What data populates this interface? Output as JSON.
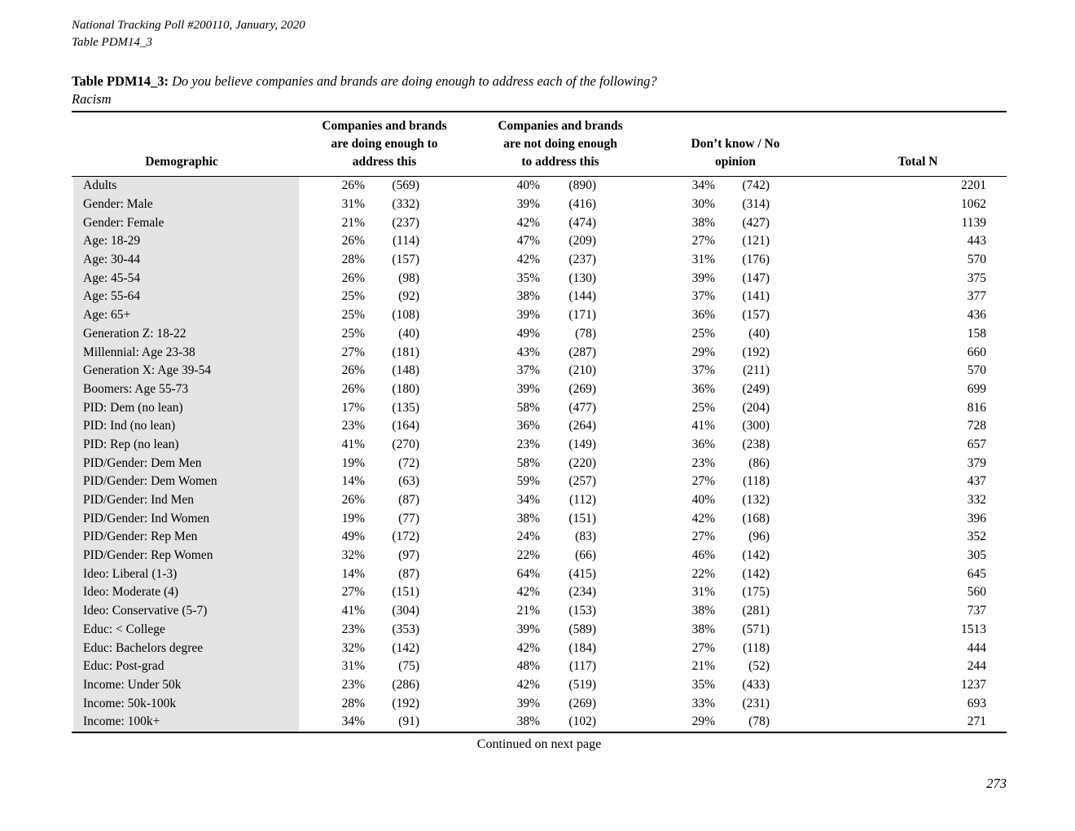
{
  "page": {
    "header_line1": "National Tracking Poll #200110, January, 2020",
    "header_line2": "Table PDM14_3",
    "title_label": "Table PDM14_3:",
    "title_question": "Do you believe companies and brands are doing enough to address each of the following?",
    "title_topic": "Racism",
    "footer_continued": "Continued on next page",
    "page_number": "273"
  },
  "table": {
    "headers": {
      "demographic": "Demographic",
      "doing_enough": [
        "Companies and brands",
        "are doing enough to",
        "address this"
      ],
      "not_doing_enough": [
        "Companies and brands",
        "are not doing enough",
        "to address this"
      ],
      "dont_know": [
        "Don’t know / No",
        "opinion"
      ],
      "total_n": "Total N"
    },
    "rows": [
      {
        "label": "Adults",
        "c1_pct": "26%",
        "c1_n": "(569)",
        "c2_pct": "40%",
        "c2_n": "(890)",
        "c3_pct": "34%",
        "c3_n": "(742)",
        "total": "2201"
      },
      {
        "label": "Gender: Male",
        "c1_pct": "31%",
        "c1_n": "(332)",
        "c2_pct": "39%",
        "c2_n": "(416)",
        "c3_pct": "30%",
        "c3_n": "(314)",
        "total": "1062"
      },
      {
        "label": "Gender: Female",
        "c1_pct": "21%",
        "c1_n": "(237)",
        "c2_pct": "42%",
        "c2_n": "(474)",
        "c3_pct": "38%",
        "c3_n": "(427)",
        "total": "1139"
      },
      {
        "label": "Age: 18-29",
        "c1_pct": "26%",
        "c1_n": "(114)",
        "c2_pct": "47%",
        "c2_n": "(209)",
        "c3_pct": "27%",
        "c3_n": "(121)",
        "total": "443"
      },
      {
        "label": "Age: 30-44",
        "c1_pct": "28%",
        "c1_n": "(157)",
        "c2_pct": "42%",
        "c2_n": "(237)",
        "c3_pct": "31%",
        "c3_n": "(176)",
        "total": "570"
      },
      {
        "label": "Age: 45-54",
        "c1_pct": "26%",
        "c1_n": "(98)",
        "c2_pct": "35%",
        "c2_n": "(130)",
        "c3_pct": "39%",
        "c3_n": "(147)",
        "total": "375"
      },
      {
        "label": "Age: 55-64",
        "c1_pct": "25%",
        "c1_n": "(92)",
        "c2_pct": "38%",
        "c2_n": "(144)",
        "c3_pct": "37%",
        "c3_n": "(141)",
        "total": "377"
      },
      {
        "label": "Age: 65+",
        "c1_pct": "25%",
        "c1_n": "(108)",
        "c2_pct": "39%",
        "c2_n": "(171)",
        "c3_pct": "36%",
        "c3_n": "(157)",
        "total": "436"
      },
      {
        "label": "Generation Z: 18-22",
        "c1_pct": "25%",
        "c1_n": "(40)",
        "c2_pct": "49%",
        "c2_n": "(78)",
        "c3_pct": "25%",
        "c3_n": "(40)",
        "total": "158"
      },
      {
        "label": "Millennial: Age 23-38",
        "c1_pct": "27%",
        "c1_n": "(181)",
        "c2_pct": "43%",
        "c2_n": "(287)",
        "c3_pct": "29%",
        "c3_n": "(192)",
        "total": "660"
      },
      {
        "label": "Generation X: Age 39-54",
        "c1_pct": "26%",
        "c1_n": "(148)",
        "c2_pct": "37%",
        "c2_n": "(210)",
        "c3_pct": "37%",
        "c3_n": "(211)",
        "total": "570"
      },
      {
        "label": "Boomers: Age 55-73",
        "c1_pct": "26%",
        "c1_n": "(180)",
        "c2_pct": "39%",
        "c2_n": "(269)",
        "c3_pct": "36%",
        "c3_n": "(249)",
        "total": "699"
      },
      {
        "label": "PID: Dem (no lean)",
        "c1_pct": "17%",
        "c1_n": "(135)",
        "c2_pct": "58%",
        "c2_n": "(477)",
        "c3_pct": "25%",
        "c3_n": "(204)",
        "total": "816"
      },
      {
        "label": "PID: Ind (no lean)",
        "c1_pct": "23%",
        "c1_n": "(164)",
        "c2_pct": "36%",
        "c2_n": "(264)",
        "c3_pct": "41%",
        "c3_n": "(300)",
        "total": "728"
      },
      {
        "label": "PID: Rep (no lean)",
        "c1_pct": "41%",
        "c1_n": "(270)",
        "c2_pct": "23%",
        "c2_n": "(149)",
        "c3_pct": "36%",
        "c3_n": "(238)",
        "total": "657"
      },
      {
        "label": "PID/Gender: Dem Men",
        "c1_pct": "19%",
        "c1_n": "(72)",
        "c2_pct": "58%",
        "c2_n": "(220)",
        "c3_pct": "23%",
        "c3_n": "(86)",
        "total": "379"
      },
      {
        "label": "PID/Gender: Dem Women",
        "c1_pct": "14%",
        "c1_n": "(63)",
        "c2_pct": "59%",
        "c2_n": "(257)",
        "c3_pct": "27%",
        "c3_n": "(118)",
        "total": "437"
      },
      {
        "label": "PID/Gender: Ind Men",
        "c1_pct": "26%",
        "c1_n": "(87)",
        "c2_pct": "34%",
        "c2_n": "(112)",
        "c3_pct": "40%",
        "c3_n": "(132)",
        "total": "332"
      },
      {
        "label": "PID/Gender: Ind Women",
        "c1_pct": "19%",
        "c1_n": "(77)",
        "c2_pct": "38%",
        "c2_n": "(151)",
        "c3_pct": "42%",
        "c3_n": "(168)",
        "total": "396"
      },
      {
        "label": "PID/Gender: Rep Men",
        "c1_pct": "49%",
        "c1_n": "(172)",
        "c2_pct": "24%",
        "c2_n": "(83)",
        "c3_pct": "27%",
        "c3_n": "(96)",
        "total": "352"
      },
      {
        "label": "PID/Gender: Rep Women",
        "c1_pct": "32%",
        "c1_n": "(97)",
        "c2_pct": "22%",
        "c2_n": "(66)",
        "c3_pct": "46%",
        "c3_n": "(142)",
        "total": "305"
      },
      {
        "label": "Ideo: Liberal (1-3)",
        "c1_pct": "14%",
        "c1_n": "(87)",
        "c2_pct": "64%",
        "c2_n": "(415)",
        "c3_pct": "22%",
        "c3_n": "(142)",
        "total": "645"
      },
      {
        "label": "Ideo: Moderate (4)",
        "c1_pct": "27%",
        "c1_n": "(151)",
        "c2_pct": "42%",
        "c2_n": "(234)",
        "c3_pct": "31%",
        "c3_n": "(175)",
        "total": "560"
      },
      {
        "label": "Ideo: Conservative (5-7)",
        "c1_pct": "41%",
        "c1_n": "(304)",
        "c2_pct": "21%",
        "c2_n": "(153)",
        "c3_pct": "38%",
        "c3_n": "(281)",
        "total": "737"
      },
      {
        "label": "Educ: < College",
        "c1_pct": "23%",
        "c1_n": "(353)",
        "c2_pct": "39%",
        "c2_n": "(589)",
        "c3_pct": "38%",
        "c3_n": "(571)",
        "total": "1513"
      },
      {
        "label": "Educ: Bachelors degree",
        "c1_pct": "32%",
        "c1_n": "(142)",
        "c2_pct": "42%",
        "c2_n": "(184)",
        "c3_pct": "27%",
        "c3_n": "(118)",
        "total": "444"
      },
      {
        "label": "Educ: Post-grad",
        "c1_pct": "31%",
        "c1_n": "(75)",
        "c2_pct": "48%",
        "c2_n": "(117)",
        "c3_pct": "21%",
        "c3_n": "(52)",
        "total": "244"
      },
      {
        "label": "Income: Under 50k",
        "c1_pct": "23%",
        "c1_n": "(286)",
        "c2_pct": "42%",
        "c2_n": "(519)",
        "c3_pct": "35%",
        "c3_n": "(433)",
        "total": "1237"
      },
      {
        "label": "Income: 50k-100k",
        "c1_pct": "28%",
        "c1_n": "(192)",
        "c2_pct": "39%",
        "c2_n": "(269)",
        "c3_pct": "33%",
        "c3_n": "(231)",
        "total": "693"
      },
      {
        "label": "Income: 100k+",
        "c1_pct": "34%",
        "c1_n": "(91)",
        "c2_pct": "38%",
        "c2_n": "(102)",
        "c3_pct": "29%",
        "c3_n": "(78)",
        "total": "271"
      }
    ]
  },
  "colors": {
    "demographic_band": "#e4e4e4",
    "rule": "#000000",
    "text": "#000000"
  }
}
